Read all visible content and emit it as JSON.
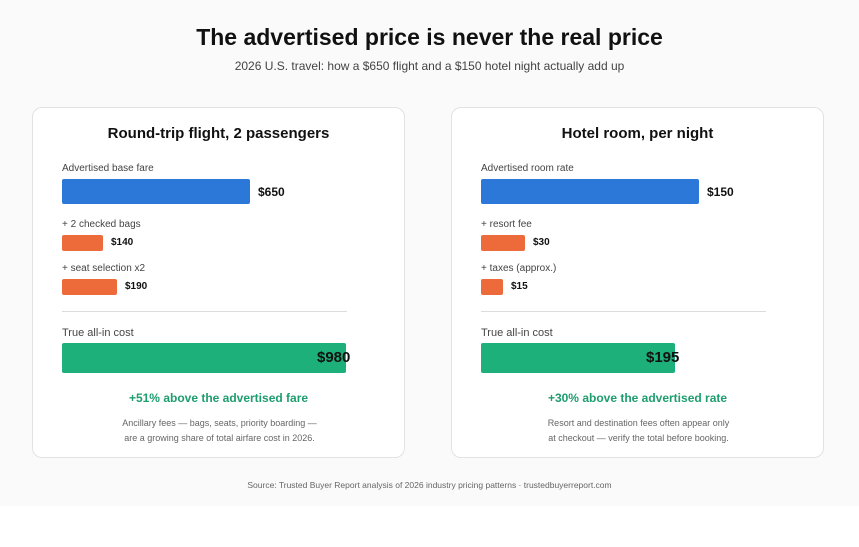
{
  "header": {
    "title": "The advertised price is never the real price",
    "subtitle": "2026 U.S. travel: how a $650 flight and a $150 hotel night actually add up"
  },
  "colors": {
    "base": "#2b78d8",
    "fee": "#ed6b3b",
    "total": "#1db07a",
    "highlight": "#1e9d6e"
  },
  "chart_data": [
    {
      "type": "bar",
      "title": "Round-trip flight, 2 passengers",
      "currency": "$",
      "items": [
        {
          "label": "Advertised base fare",
          "value": 650,
          "display": "$650",
          "kind": "base"
        },
        {
          "label": "+ 2 checked bags",
          "value": 140,
          "display": "$140",
          "kind": "fee"
        },
        {
          "label": "+ seat selection x2",
          "value": 190,
          "display": "$190",
          "kind": "fee"
        }
      ],
      "total": {
        "label": "True all-in cost",
        "value": 980,
        "display": "$980"
      },
      "highlight": "+51% above the advertised fare",
      "note_lines": [
        "Ancillary fees — bags, seats, priority boarding —",
        "are a growing share of total airfare cost in 2026."
      ]
    },
    {
      "type": "bar",
      "title": "Hotel room, per night",
      "currency": "$",
      "items": [
        {
          "label": "Advertised room rate",
          "value": 150,
          "display": "$150",
          "kind": "base"
        },
        {
          "label": "+ resort fee",
          "value": 30,
          "display": "$30",
          "kind": "fee"
        },
        {
          "label": "+ taxes (approx.)",
          "value": 15,
          "display": "$15",
          "kind": "fee"
        }
      ],
      "total": {
        "label": "True all-in cost",
        "value": 195,
        "display": "$195"
      },
      "highlight": "+30% above the advertised rate",
      "note_lines": [
        "Resort and destination fees often appear only",
        "at checkout — verify the total before booking."
      ]
    }
  ],
  "footer": {
    "source": "Source: Trusted Buyer Report analysis of 2026 industry pricing patterns · trustedbuyerreport.com"
  }
}
